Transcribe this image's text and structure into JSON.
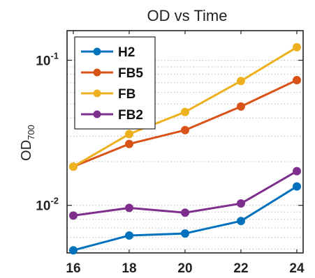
{
  "chart_data": {
    "type": "line",
    "title": "OD vs Time",
    "ylabel_main": "OD",
    "ylabel_sub": "700",
    "xlabel": "",
    "x": [
      16,
      18,
      20,
      22,
      24
    ],
    "x_ticks": [
      "16",
      "18",
      "20",
      "22",
      "24"
    ],
    "xlim": [
      16,
      24
    ],
    "yscale": "log",
    "ylim": [
      0.0047,
      0.16
    ],
    "y_ticks": [
      {
        "value": 0.01,
        "base": "10",
        "exp": "-2"
      },
      {
        "value": 0.1,
        "base": "10",
        "exp": "-1"
      }
    ],
    "grid": "minor dotted",
    "legend_position": "top-left",
    "series": [
      {
        "name": "H2",
        "color": "#0072BD",
        "values": [
          0.0049,
          0.0062,
          0.0064,
          0.0078,
          0.0135
        ]
      },
      {
        "name": "FB5",
        "color": "#D95319",
        "values": [
          0.0185,
          0.0265,
          0.033,
          0.048,
          0.073
        ]
      },
      {
        "name": "FB",
        "color": "#EDB120",
        "values": [
          0.0185,
          0.031,
          0.044,
          0.072,
          0.123
        ]
      },
      {
        "name": "FB2",
        "color": "#7E2F8E",
        "values": [
          0.0085,
          0.0096,
          0.0089,
          0.0103,
          0.0172
        ]
      }
    ]
  }
}
